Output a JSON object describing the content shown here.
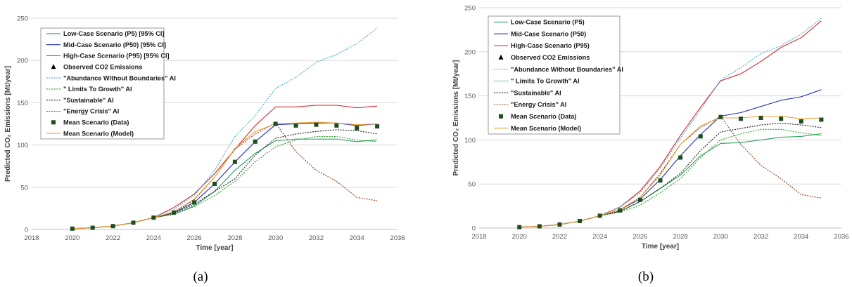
{
  "chart_data": [
    {
      "type": "line",
      "panel_label": "(a)",
      "xlabel": "Time [year]",
      "ylabel": "Predicted CO₂ Emissions [Mt/year]",
      "xlim": [
        2018,
        2036
      ],
      "ylim": [
        0,
        250
      ],
      "xticks": [
        "2018",
        "2020",
        "2022",
        "2024",
        "2026",
        "2028",
        "2030",
        "2032",
        "2034",
        "2036"
      ],
      "yticks": [
        "0",
        "50",
        "100",
        "150",
        "200",
        "250"
      ],
      "grid": "horizontal",
      "legend_position": "top-left",
      "x": [
        2020,
        2021,
        2022,
        2023,
        2024,
        2025,
        2026,
        2027,
        2028,
        2029,
        2030,
        2031,
        2032,
        2033,
        2034,
        2035
      ],
      "series": [
        {
          "name": "Low-Case Scenario (P5)  [95% CI]",
          "color": "#2ca25f",
          "style": "solid",
          "values": [
            1,
            2,
            4,
            8,
            14,
            18,
            28,
            45,
            70,
            90,
            105,
            107,
            107,
            107,
            104,
            106
          ]
        },
        {
          "name": "Mid-Case Scenario (P50) [95% CI]",
          "color": "#1f2fbf",
          "style": "solid",
          "values": [
            1,
            2,
            4,
            8,
            14,
            20,
            32,
            54,
            80,
            104,
            124,
            125,
            126,
            126,
            123,
            125
          ]
        },
        {
          "name": "High-Case Scenario (P95) [95% CI]",
          "color": "#d62728",
          "style": "solid",
          "values": [
            1,
            2,
            4,
            8,
            14,
            26,
            42,
            66,
            95,
            123,
            145,
            145,
            147,
            147,
            144,
            146
          ]
        },
        {
          "name": "\"Abundance Without Boundaries\" AI",
          "color": "#3fa7d6",
          "style": "dotted",
          "values": [
            1,
            2,
            4,
            8,
            14,
            24,
            40,
            70,
            110,
            135,
            167,
            180,
            198,
            207,
            220,
            238
          ]
        },
        {
          "name": "\" Limits To Growth\" AI",
          "color": "#2ca02c",
          "style": "dotted",
          "values": [
            1,
            2,
            4,
            8,
            14,
            18,
            27,
            40,
            57,
            80,
            98,
            106,
            110,
            110,
            106,
            104
          ]
        },
        {
          "name": "\"Sustainable\" AI",
          "color": "#1a1a1a",
          "style": "dotted",
          "values": [
            1,
            2,
            4,
            8,
            14,
            19,
            30,
            45,
            60,
            88,
            108,
            113,
            116,
            118,
            117,
            113
          ]
        },
        {
          "name": "\"Energy Crisis\" AI",
          "color": "#8b3a1a",
          "style": "dotted",
          "values": [
            1,
            2,
            4,
            8,
            14,
            20,
            35,
            62,
            95,
            113,
            126,
            92,
            70,
            57,
            38,
            34
          ]
        },
        {
          "name": "Mean Scenario (Model)",
          "color": "#f0a030",
          "style": "solid",
          "values": [
            1,
            2,
            4,
            8,
            14,
            21,
            36,
            62,
            96,
            116,
            125,
            126,
            127,
            126,
            124,
            125
          ]
        }
      ],
      "points": {
        "name": "Mean Scenario (Data)",
        "color": "#1e4d1e",
        "values": [
          1,
          2,
          4,
          8,
          14,
          20,
          32,
          54,
          80,
          104,
          125,
          123,
          124,
          123,
          120,
          122
        ]
      },
      "observed_label": "Observed CO2 Emissions",
      "legend": [
        "Low-Case Scenario (P5)  [95% CI]",
        "Mid-Case Scenario (P50) [95% CI]",
        "High-Case Scenario (P95) [95% CI]",
        "Observed CO2 Emissions",
        "\"Abundance Without Boundaries\" AI",
        "\" Limits To Growth\" AI",
        "\"Sustainable\" AI",
        "\"Energy Crisis\" AI",
        "Mean Scenario (Data)",
        "Mean Scenario (Model)"
      ]
    },
    {
      "type": "line",
      "panel_label": "(b)",
      "xlabel": "Time [year]",
      "ylabel": "Predicted CO₂ Emissions [Mt/year]",
      "xlim": [
        2018,
        2036
      ],
      "ylim": [
        0,
        250
      ],
      "xticks": [
        "2018",
        "2020",
        "2022",
        "2024",
        "2026",
        "2028",
        "2030",
        "2032",
        "2034",
        "2036"
      ],
      "yticks": [
        "0",
        "50",
        "100",
        "150",
        "200",
        "250"
      ],
      "grid": "horizontal",
      "legend_position": "top-left",
      "x": [
        2020,
        2021,
        2022,
        2023,
        2024,
        2025,
        2026,
        2027,
        2028,
        2029,
        2030,
        2031,
        2032,
        2033,
        2034,
        2035
      ],
      "series": [
        {
          "name": "Low-Case Scenario (P5)",
          "color": "#2ca25f",
          "style": "solid",
          "values": [
            1,
            2,
            4,
            8,
            14,
            19,
            30,
            45,
            60,
            82,
            96,
            97,
            100,
            103,
            104,
            107
          ]
        },
        {
          "name": "Mid-Case Scenario (P50)",
          "color": "#1f2fbf",
          "style": "solid",
          "values": [
            1,
            2,
            4,
            8,
            14,
            21,
            33,
            55,
            82,
            106,
            127,
            131,
            138,
            145,
            149,
            157
          ]
        },
        {
          "name": "High-Case Scenario (P95)",
          "color": "#d62728",
          "style": "solid",
          "values": [
            1,
            2,
            4,
            8,
            14,
            24,
            42,
            70,
            105,
            137,
            167,
            175,
            189,
            205,
            216,
            235
          ]
        },
        {
          "name": "\"Abundance Without Boundaries\" AI",
          "color": "#3fa7d6",
          "style": "dotted",
          "values": [
            1,
            2,
            4,
            8,
            14,
            24,
            40,
            68,
            102,
            134,
            168,
            182,
            198,
            207,
            220,
            238
          ]
        },
        {
          "name": "\" Limits To Growth\" AI",
          "color": "#2ca02c",
          "style": "dotted",
          "values": [
            1,
            2,
            4,
            8,
            14,
            18,
            26,
            40,
            56,
            80,
            100,
            107,
            112,
            112,
            108,
            105
          ]
        },
        {
          "name": "\"Sustainable\" AI",
          "color": "#1a1a1a",
          "style": "dotted",
          "values": [
            1,
            2,
            4,
            8,
            14,
            19,
            30,
            45,
            62,
            88,
            109,
            113,
            117,
            119,
            117,
            114
          ]
        },
        {
          "name": "\"Energy Crisis\" AI",
          "color": "#8b3a1a",
          "style": "dotted",
          "values": [
            1,
            2,
            4,
            8,
            14,
            20,
            35,
            62,
            95,
            114,
            127,
            95,
            71,
            56,
            38,
            34
          ]
        },
        {
          "name": "Mean Scenario (Model)",
          "color": "#f0a030",
          "style": "solid",
          "values": [
            1,
            2,
            4,
            8,
            14,
            21,
            35,
            60,
            95,
            116,
            125,
            125,
            127,
            127,
            124,
            125
          ]
        }
      ],
      "points": {
        "name": "Mean Scenario (Data)",
        "color": "#1e4d1e",
        "values": [
          1,
          2,
          4,
          8,
          14,
          20,
          32,
          54,
          80,
          104,
          126,
          124,
          125,
          124,
          121,
          123
        ]
      },
      "observed_label": "Observed CO2 Emissions",
      "legend": [
        "Low-Case Scenario (P5)",
        "Mid-Case Scenario (P50)",
        "High-Case Scenario (P95)",
        "Observed CO2 Emissions",
        "\"Abundance Without Boundaries\" AI",
        "\" Limits To Growth\" AI",
        "\"Sustainable\" AI",
        "\"Energy Crisis\" AI",
        "Mean Scenario (Data)",
        "Mean Scenario (Model)"
      ]
    }
  ]
}
